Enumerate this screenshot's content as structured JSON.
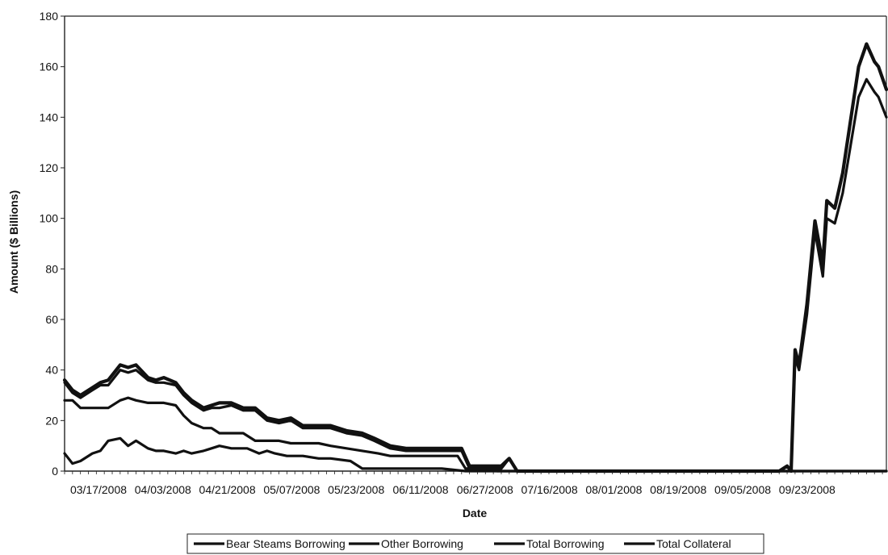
{
  "chart_data": {
    "type": "line",
    "xlabel": "Date",
    "ylabel": "Amount ($ Billions)",
    "ylim": [
      0,
      180
    ],
    "yticks": [
      0,
      20,
      40,
      60,
      80,
      100,
      120,
      140,
      160,
      180
    ],
    "xticks": [
      "03/17/2008",
      "04/03/2008",
      "04/21/2008",
      "05/07/2008",
      "05/23/2008",
      "06/11/2008",
      "06/27/2008",
      "07/16/2008",
      "08/01/2008",
      "08/19/2008",
      "09/05/2008",
      "09/23/2008"
    ],
    "grid": false,
    "legend_position": "bottom",
    "x_start": "2008-03-17",
    "x_end": "2008-10-10",
    "series": [
      {
        "name": "Bear Steams Borrowing",
        "color": "#111111",
        "points": [
          [
            "2008-03-17",
            7
          ],
          [
            "2008-03-19",
            3
          ],
          [
            "2008-03-21",
            4
          ],
          [
            "2008-03-24",
            7
          ],
          [
            "2008-03-26",
            8
          ],
          [
            "2008-03-28",
            12
          ],
          [
            "2008-03-31",
            13
          ],
          [
            "2008-04-02",
            10
          ],
          [
            "2008-04-04",
            12
          ],
          [
            "2008-04-07",
            9
          ],
          [
            "2008-04-09",
            8
          ],
          [
            "2008-04-11",
            8
          ],
          [
            "2008-04-14",
            7
          ],
          [
            "2008-04-16",
            8
          ],
          [
            "2008-04-18",
            7
          ],
          [
            "2008-04-21",
            8
          ],
          [
            "2008-04-23",
            9
          ],
          [
            "2008-04-25",
            10
          ],
          [
            "2008-04-28",
            9
          ],
          [
            "2008-05-02",
            9
          ],
          [
            "2008-05-05",
            7
          ],
          [
            "2008-05-07",
            8
          ],
          [
            "2008-05-09",
            7
          ],
          [
            "2008-05-12",
            6
          ],
          [
            "2008-05-16",
            6
          ],
          [
            "2008-05-20",
            5
          ],
          [
            "2008-05-23",
            5
          ],
          [
            "2008-05-28",
            4
          ],
          [
            "2008-05-31",
            1
          ],
          [
            "2008-06-05",
            1
          ],
          [
            "2008-06-11",
            1
          ],
          [
            "2008-06-20",
            1
          ],
          [
            "2008-06-26",
            0
          ],
          [
            "2008-10-10",
            0
          ]
        ]
      },
      {
        "name": "Other Borrowing",
        "color": "#111111",
        "points": [
          [
            "2008-03-17",
            28
          ],
          [
            "2008-03-19",
            28
          ],
          [
            "2008-03-21",
            25
          ],
          [
            "2008-03-24",
            25
          ],
          [
            "2008-03-26",
            25
          ],
          [
            "2008-03-28",
            25
          ],
          [
            "2008-03-31",
            28
          ],
          [
            "2008-04-02",
            29
          ],
          [
            "2008-04-04",
            28
          ],
          [
            "2008-04-07",
            27
          ],
          [
            "2008-04-11",
            27
          ],
          [
            "2008-04-14",
            26
          ],
          [
            "2008-04-16",
            22
          ],
          [
            "2008-04-18",
            19
          ],
          [
            "2008-04-21",
            17
          ],
          [
            "2008-04-23",
            17
          ],
          [
            "2008-04-25",
            15
          ],
          [
            "2008-04-28",
            15
          ],
          [
            "2008-05-01",
            15
          ],
          [
            "2008-05-04",
            12
          ],
          [
            "2008-05-07",
            12
          ],
          [
            "2008-05-10",
            12
          ],
          [
            "2008-05-13",
            11
          ],
          [
            "2008-05-16",
            11
          ],
          [
            "2008-05-20",
            11
          ],
          [
            "2008-05-23",
            10
          ],
          [
            "2008-05-27",
            9
          ],
          [
            "2008-05-31",
            8
          ],
          [
            "2008-06-04",
            7
          ],
          [
            "2008-06-07",
            6
          ],
          [
            "2008-06-11",
            6
          ],
          [
            "2008-06-18",
            6
          ],
          [
            "2008-06-24",
            6
          ],
          [
            "2008-06-26",
            1
          ],
          [
            "2008-07-01",
            1
          ],
          [
            "2008-07-04",
            0
          ],
          [
            "2008-10-10",
            0
          ]
        ]
      },
      {
        "name": "Total Borrowing",
        "color": "#111111",
        "points": [
          [
            "2008-03-17",
            35
          ],
          [
            "2008-03-19",
            31
          ],
          [
            "2008-03-21",
            29
          ],
          [
            "2008-03-24",
            32
          ],
          [
            "2008-03-26",
            34
          ],
          [
            "2008-03-28",
            34
          ],
          [
            "2008-03-31",
            40
          ],
          [
            "2008-04-02",
            39
          ],
          [
            "2008-04-04",
            40
          ],
          [
            "2008-04-07",
            36
          ],
          [
            "2008-04-09",
            35
          ],
          [
            "2008-04-11",
            35
          ],
          [
            "2008-04-14",
            34
          ],
          [
            "2008-04-16",
            30
          ],
          [
            "2008-04-18",
            27
          ],
          [
            "2008-04-21",
            24
          ],
          [
            "2008-04-23",
            25
          ],
          [
            "2008-04-25",
            25
          ],
          [
            "2008-04-28",
            26
          ],
          [
            "2008-05-01",
            24
          ],
          [
            "2008-05-04",
            24
          ],
          [
            "2008-05-07",
            20
          ],
          [
            "2008-05-10",
            19
          ],
          [
            "2008-05-13",
            20
          ],
          [
            "2008-05-16",
            17
          ],
          [
            "2008-05-20",
            17
          ],
          [
            "2008-05-23",
            17
          ],
          [
            "2008-05-27",
            15
          ],
          [
            "2008-05-31",
            14
          ],
          [
            "2008-06-03",
            12
          ],
          [
            "2008-06-07",
            9
          ],
          [
            "2008-06-11",
            8
          ],
          [
            "2008-06-15",
            8
          ],
          [
            "2008-06-20",
            8
          ],
          [
            "2008-06-25",
            8
          ],
          [
            "2008-06-27",
            1
          ],
          [
            "2008-07-02",
            1
          ],
          [
            "2008-07-05",
            1
          ],
          [
            "2008-07-07",
            5
          ],
          [
            "2008-07-09",
            0
          ],
          [
            "2008-09-13",
            0
          ],
          [
            "2008-09-15",
            2
          ],
          [
            "2008-09-16",
            0
          ],
          [
            "2008-09-17",
            45
          ],
          [
            "2008-09-18",
            40
          ],
          [
            "2008-09-20",
            62
          ],
          [
            "2008-09-22",
            95
          ],
          [
            "2008-09-24",
            77
          ],
          [
            "2008-09-25",
            100
          ],
          [
            "2008-09-27",
            98
          ],
          [
            "2008-09-29",
            110
          ],
          [
            "2008-10-03",
            148
          ],
          [
            "2008-10-05",
            155
          ],
          [
            "2008-10-07",
            150
          ],
          [
            "2008-10-08",
            148
          ],
          [
            "2008-10-10",
            140
          ]
        ]
      },
      {
        "name": "Total Collateral",
        "color": "#111111",
        "points": [
          [
            "2008-03-17",
            36
          ],
          [
            "2008-03-19",
            32
          ],
          [
            "2008-03-21",
            30
          ],
          [
            "2008-03-24",
            33
          ],
          [
            "2008-03-26",
            35
          ],
          [
            "2008-03-28",
            36
          ],
          [
            "2008-03-31",
            42
          ],
          [
            "2008-04-02",
            41
          ],
          [
            "2008-04-04",
            42
          ],
          [
            "2008-04-07",
            37
          ],
          [
            "2008-04-09",
            36
          ],
          [
            "2008-04-11",
            37
          ],
          [
            "2008-04-14",
            35
          ],
          [
            "2008-04-16",
            31
          ],
          [
            "2008-04-18",
            28
          ],
          [
            "2008-04-21",
            25
          ],
          [
            "2008-04-23",
            26
          ],
          [
            "2008-04-25",
            27
          ],
          [
            "2008-04-28",
            27
          ],
          [
            "2008-05-01",
            25
          ],
          [
            "2008-05-04",
            25
          ],
          [
            "2008-05-07",
            21
          ],
          [
            "2008-05-10",
            20
          ],
          [
            "2008-05-13",
            21
          ],
          [
            "2008-05-16",
            18
          ],
          [
            "2008-05-20",
            18
          ],
          [
            "2008-05-23",
            18
          ],
          [
            "2008-05-27",
            16
          ],
          [
            "2008-05-31",
            15
          ],
          [
            "2008-06-03",
            13
          ],
          [
            "2008-06-07",
            10
          ],
          [
            "2008-06-11",
            9
          ],
          [
            "2008-06-15",
            9
          ],
          [
            "2008-06-20",
            9
          ],
          [
            "2008-06-25",
            9
          ],
          [
            "2008-06-27",
            2
          ],
          [
            "2008-07-02",
            2
          ],
          [
            "2008-07-05",
            2
          ],
          [
            "2008-07-07",
            5
          ],
          [
            "2008-07-09",
            0
          ],
          [
            "2008-09-13",
            0
          ],
          [
            "2008-09-15",
            2
          ],
          [
            "2008-09-16",
            0
          ],
          [
            "2008-09-17",
            48
          ],
          [
            "2008-09-18",
            42
          ],
          [
            "2008-09-20",
            66
          ],
          [
            "2008-09-22",
            99
          ],
          [
            "2008-09-24",
            82
          ],
          [
            "2008-09-25",
            107
          ],
          [
            "2008-09-27",
            104
          ],
          [
            "2008-09-29",
            118
          ],
          [
            "2008-10-03",
            160
          ],
          [
            "2008-10-05",
            169
          ],
          [
            "2008-10-07",
            162
          ],
          [
            "2008-10-08",
            160
          ],
          [
            "2008-10-10",
            151
          ]
        ]
      }
    ]
  }
}
